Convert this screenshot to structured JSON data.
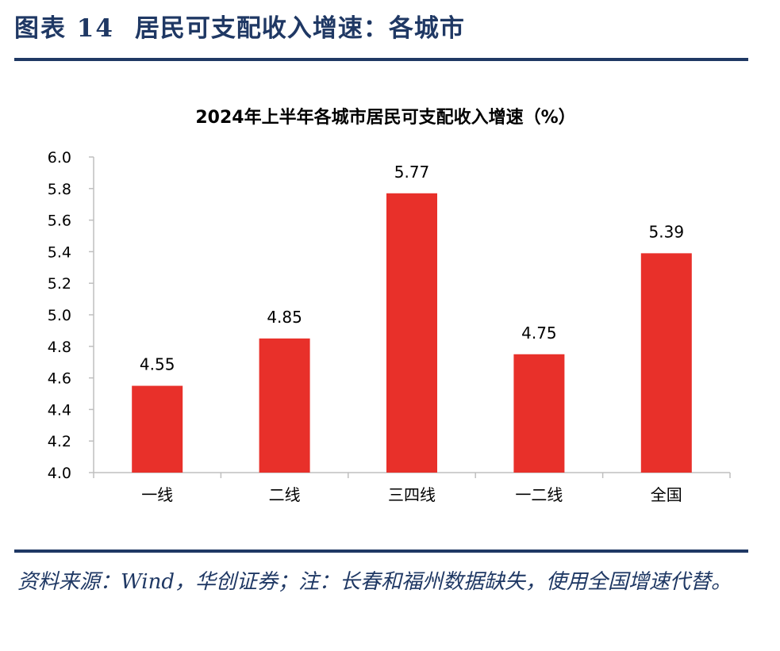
{
  "figure": {
    "label": "图表 14",
    "title": "居民可支配收入增速：各城市"
  },
  "colors": {
    "header": "#1f3864",
    "bar": "#e8302a",
    "axis": "#bfbfbf",
    "text": "#000000"
  },
  "chart_data": {
    "type": "bar",
    "title": "2024年上半年各城市居民可支配收入增速（%）",
    "xlabel": "",
    "ylabel": "",
    "categories": [
      "一线",
      "二线",
      "三四线",
      "一二线",
      "全国"
    ],
    "values": [
      4.55,
      4.85,
      5.77,
      4.75,
      5.39
    ],
    "data_labels": [
      "4.55",
      "4.85",
      "5.77",
      "4.75",
      "5.39"
    ],
    "ylim": [
      4.0,
      6.0
    ],
    "yticks": [
      4.0,
      4.2,
      4.4,
      4.6,
      4.8,
      5.0,
      5.2,
      5.4,
      5.6,
      5.8,
      6.0
    ],
    "ytick_labels": [
      "4.0",
      "4.2",
      "4.4",
      "4.6",
      "4.8",
      "5.0",
      "5.2",
      "5.4",
      "5.6",
      "5.8",
      "6.0"
    ],
    "grid": false,
    "legend": "none"
  },
  "source_note": "资料来源：Wind，华创证券；注：长春和福州数据缺失，使用全国增速代替。"
}
